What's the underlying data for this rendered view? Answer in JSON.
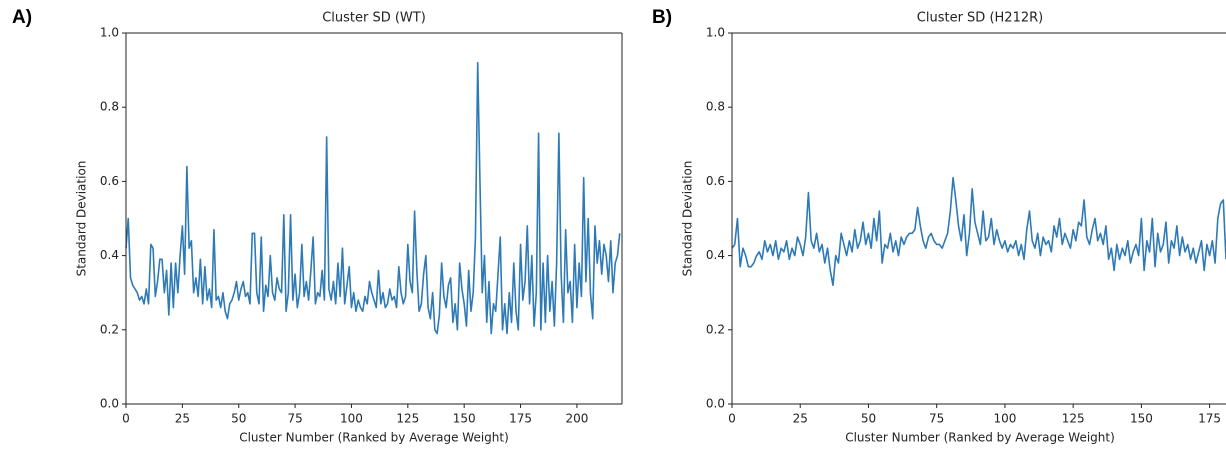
{
  "chart_data": [
    {
      "type": "line",
      "label": "A)",
      "title": "Cluster SD (WT)",
      "x_label": "Cluster Number (Ranked by Average Weight)",
      "y_label": "Standard Deviation",
      "xlim": [
        0,
        220
      ],
      "ylim": [
        0,
        1
      ],
      "xticks": [
        0,
        25,
        50,
        75,
        100,
        125,
        150,
        175,
        200
      ],
      "yticks": [
        {
          "value": 0,
          "label": "0.0"
        },
        {
          "value": 0.2,
          "label": "0.2"
        },
        {
          "value": 0.4,
          "label": "0.4"
        },
        {
          "value": 0.6,
          "label": "0.6"
        },
        {
          "value": 0.8,
          "label": "0.8"
        },
        {
          "value": 1,
          "label": "1.0"
        }
      ],
      "series": [
        {
          "color": "#2e7ab6",
          "x": [
            0,
            1,
            2,
            3,
            4,
            5,
            6,
            7,
            8,
            9,
            10,
            11,
            12,
            13,
            14,
            15,
            16,
            17,
            18,
            19,
            20,
            21,
            22,
            23,
            24,
            25,
            26,
            27,
            28,
            29,
            30,
            31,
            32,
            33,
            34,
            35,
            36,
            37,
            38,
            39,
            40,
            41,
            42,
            43,
            44,
            45,
            46,
            47,
            48,
            49,
            50,
            51,
            52,
            53,
            54,
            55,
            56,
            57,
            58,
            59,
            60,
            61,
            62,
            63,
            64,
            65,
            66,
            67,
            68,
            69,
            70,
            71,
            72,
            73,
            74,
            75,
            76,
            77,
            78,
            79,
            80,
            81,
            82,
            83,
            84,
            85,
            86,
            87,
            88,
            89,
            90,
            91,
            92,
            93,
            94,
            95,
            96,
            97,
            98,
            99,
            100,
            101,
            102,
            103,
            104,
            105,
            106,
            107,
            108,
            109,
            110,
            111,
            112,
            113,
            114,
            115,
            116,
            117,
            118,
            119,
            120,
            121,
            122,
            123,
            124,
            125,
            126,
            127,
            128,
            129,
            130,
            131,
            132,
            133,
            134,
            135,
            136,
            137,
            138,
            139,
            140,
            141,
            142,
            143,
            144,
            145,
            146,
            147,
            148,
            149,
            150,
            151,
            152,
            153,
            154,
            155,
            156,
            157,
            158,
            159,
            160,
            161,
            162,
            163,
            164,
            165,
            166,
            167,
            168,
            169,
            170,
            171,
            172,
            173,
            174,
            175,
            176,
            177,
            178,
            179,
            180,
            181,
            182,
            183,
            184,
            185,
            186,
            187,
            188,
            189,
            190,
            191,
            192,
            193,
            194,
            195,
            196,
            197,
            198,
            199,
            200,
            201,
            202,
            203,
            204,
            205,
            206,
            207,
            208,
            209,
            210,
            211,
            212,
            213,
            214,
            215,
            216,
            217,
            218,
            219
          ],
          "values": [
            0.42,
            0.5,
            0.34,
            0.32,
            0.31,
            0.3,
            0.28,
            0.29,
            0.27,
            0.31,
            0.27,
            0.43,
            0.42,
            0.29,
            0.33,
            0.39,
            0.39,
            0.3,
            0.36,
            0.24,
            0.38,
            0.26,
            0.38,
            0.3,
            0.4,
            0.48,
            0.35,
            0.64,
            0.42,
            0.44,
            0.3,
            0.34,
            0.29,
            0.39,
            0.27,
            0.37,
            0.28,
            0.31,
            0.26,
            0.47,
            0.28,
            0.29,
            0.26,
            0.3,
            0.25,
            0.23,
            0.27,
            0.28,
            0.3,
            0.33,
            0.28,
            0.31,
            0.33,
            0.29,
            0.3,
            0.27,
            0.46,
            0.46,
            0.3,
            0.27,
            0.45,
            0.25,
            0.32,
            0.29,
            0.4,
            0.3,
            0.28,
            0.34,
            0.31,
            0.3,
            0.51,
            0.25,
            0.3,
            0.51,
            0.28,
            0.35,
            0.26,
            0.3,
            0.43,
            0.29,
            0.33,
            0.28,
            0.36,
            0.45,
            0.27,
            0.3,
            0.29,
            0.36,
            0.28,
            0.72,
            0.31,
            0.28,
            0.33,
            0.27,
            0.38,
            0.29,
            0.42,
            0.27,
            0.32,
            0.37,
            0.26,
            0.3,
            0.25,
            0.28,
            0.26,
            0.25,
            0.29,
            0.27,
            0.33,
            0.3,
            0.28,
            0.26,
            0.36,
            0.27,
            0.3,
            0.26,
            0.27,
            0.31,
            0.28,
            0.29,
            0.26,
            0.37,
            0.3,
            0.27,
            0.29,
            0.43,
            0.33,
            0.3,
            0.52,
            0.36,
            0.25,
            0.27,
            0.35,
            0.4,
            0.26,
            0.23,
            0.3,
            0.2,
            0.19,
            0.24,
            0.38,
            0.29,
            0.26,
            0.32,
            0.34,
            0.22,
            0.27,
            0.2,
            0.38,
            0.31,
            0.27,
            0.21,
            0.36,
            0.25,
            0.3,
            0.45,
            0.92,
            0.6,
            0.3,
            0.4,
            0.22,
            0.33,
            0.19,
            0.27,
            0.25,
            0.35,
            0.45,
            0.2,
            0.27,
            0.19,
            0.3,
            0.22,
            0.38,
            0.25,
            0.2,
            0.43,
            0.28,
            0.33,
            0.48,
            0.27,
            0.4,
            0.21,
            0.3,
            0.73,
            0.2,
            0.38,
            0.22,
            0.4,
            0.25,
            0.33,
            0.21,
            0.38,
            0.73,
            0.35,
            0.22,
            0.47,
            0.3,
            0.33,
            0.22,
            0.43,
            0.26,
            0.38,
            0.29,
            0.61,
            0.33,
            0.5,
            0.3,
            0.23,
            0.48,
            0.38,
            0.44,
            0.35,
            0.43,
            0.4,
            0.33,
            0.44,
            0.3,
            0.38,
            0.4,
            0.46
          ]
        }
      ]
    },
    {
      "type": "line",
      "label": "B)",
      "title": "Cluster SD (H212R)",
      "x_label": "Cluster Number (Ranked by Average Weight)",
      "y_label": "Standard Deviation",
      "xlim": [
        0,
        181
      ],
      "ylim": [
        0,
        1
      ],
      "xticks": [
        0,
        25,
        50,
        75,
        100,
        125,
        150,
        175
      ],
      "yticks": [
        {
          "value": 0,
          "label": "0.0"
        },
        {
          "value": 0.2,
          "label": "0.2"
        },
        {
          "value": 0.4,
          "label": "0.4"
        },
        {
          "value": 0.6,
          "label": "0.6"
        },
        {
          "value": 0.8,
          "label": "0.8"
        },
        {
          "value": 1,
          "label": "1.0"
        }
      ],
      "series": [
        {
          "color": "#2e7ab6",
          "x": [
            0,
            1,
            2,
            3,
            4,
            5,
            6,
            7,
            8,
            9,
            10,
            11,
            12,
            13,
            14,
            15,
            16,
            17,
            18,
            19,
            20,
            21,
            22,
            23,
            24,
            25,
            26,
            27,
            28,
            29,
            30,
            31,
            32,
            33,
            34,
            35,
            36,
            37,
            38,
            39,
            40,
            41,
            42,
            43,
            44,
            45,
            46,
            47,
            48,
            49,
            50,
            51,
            52,
            53,
            54,
            55,
            56,
            57,
            58,
            59,
            60,
            61,
            62,
            63,
            64,
            65,
            66,
            67,
            68,
            69,
            70,
            71,
            72,
            73,
            74,
            75,
            76,
            77,
            78,
            79,
            80,
            81,
            82,
            83,
            84,
            85,
            86,
            87,
            88,
            89,
            90,
            91,
            92,
            93,
            94,
            95,
            96,
            97,
            98,
            99,
            100,
            101,
            102,
            103,
            104,
            105,
            106,
            107,
            108,
            109,
            110,
            111,
            112,
            113,
            114,
            115,
            116,
            117,
            118,
            119,
            120,
            121,
            122,
            123,
            124,
            125,
            126,
            127,
            128,
            129,
            130,
            131,
            132,
            133,
            134,
            135,
            136,
            137,
            138,
            139,
            140,
            141,
            142,
            143,
            144,
            145,
            146,
            147,
            148,
            149,
            150,
            151,
            152,
            153,
            154,
            155,
            156,
            157,
            158,
            159,
            160,
            161,
            162,
            163,
            164,
            165,
            166,
            167,
            168,
            169,
            170,
            171,
            172,
            173,
            174,
            175,
            176,
            177,
            178,
            179,
            180,
            181
          ],
          "values": [
            0.42,
            0.43,
            0.5,
            0.37,
            0.42,
            0.4,
            0.37,
            0.37,
            0.38,
            0.4,
            0.41,
            0.39,
            0.44,
            0.41,
            0.43,
            0.4,
            0.44,
            0.39,
            0.42,
            0.41,
            0.44,
            0.39,
            0.42,
            0.4,
            0.45,
            0.43,
            0.4,
            0.45,
            0.57,
            0.44,
            0.42,
            0.46,
            0.41,
            0.43,
            0.38,
            0.42,
            0.36,
            0.32,
            0.4,
            0.38,
            0.46,
            0.43,
            0.4,
            0.44,
            0.41,
            0.47,
            0.42,
            0.44,
            0.49,
            0.43,
            0.46,
            0.42,
            0.5,
            0.44,
            0.52,
            0.38,
            0.43,
            0.42,
            0.46,
            0.41,
            0.44,
            0.4,
            0.45,
            0.43,
            0.45,
            0.46,
            0.46,
            0.47,
            0.53,
            0.48,
            0.44,
            0.42,
            0.45,
            0.46,
            0.44,
            0.43,
            0.43,
            0.42,
            0.44,
            0.46,
            0.52,
            0.61,
            0.55,
            0.48,
            0.44,
            0.51,
            0.4,
            0.46,
            0.58,
            0.49,
            0.46,
            0.43,
            0.52,
            0.44,
            0.45,
            0.5,
            0.43,
            0.47,
            0.44,
            0.42,
            0.44,
            0.41,
            0.43,
            0.42,
            0.44,
            0.4,
            0.43,
            0.39,
            0.47,
            0.52,
            0.44,
            0.42,
            0.46,
            0.4,
            0.45,
            0.43,
            0.44,
            0.41,
            0.48,
            0.45,
            0.5,
            0.43,
            0.46,
            0.44,
            0.42,
            0.47,
            0.44,
            0.49,
            0.48,
            0.55,
            0.45,
            0.43,
            0.47,
            0.5,
            0.44,
            0.46,
            0.43,
            0.48,
            0.39,
            0.42,
            0.36,
            0.43,
            0.39,
            0.42,
            0.4,
            0.44,
            0.38,
            0.41,
            0.43,
            0.4,
            0.5,
            0.36,
            0.44,
            0.41,
            0.5,
            0.37,
            0.46,
            0.41,
            0.43,
            0.49,
            0.38,
            0.44,
            0.42,
            0.48,
            0.4,
            0.45,
            0.41,
            0.43,
            0.39,
            0.42,
            0.38,
            0.41,
            0.44,
            0.36,
            0.43,
            0.4,
            0.44,
            0.38,
            0.5,
            0.54,
            0.55,
            0.39
          ]
        }
      ]
    }
  ]
}
